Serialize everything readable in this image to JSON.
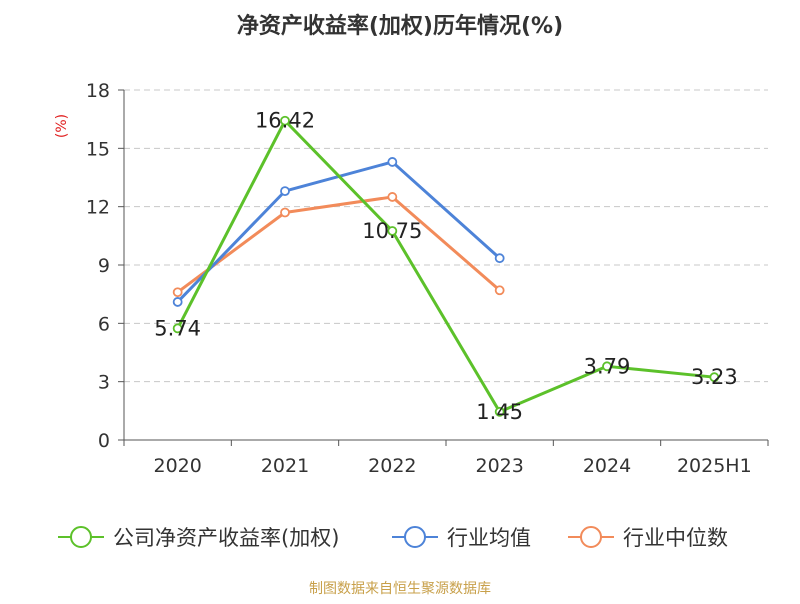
{
  "chart_data": {
    "type": "line",
    "title": "净资产收益率(加权)历年情况(%)",
    "ylabel": "(%)",
    "xlabel": "",
    "categories": [
      "2020",
      "2021",
      "2022",
      "2023",
      "2024",
      "2025H1"
    ],
    "ylim": [
      0,
      18
    ],
    "yticks": [
      0,
      3,
      6,
      9,
      12,
      15,
      18
    ],
    "grid": true,
    "legend_position": "bottom",
    "series": [
      {
        "name": "公司净资产收益率(加权)",
        "color": "#5cc12a",
        "values": [
          5.74,
          16.42,
          10.75,
          1.45,
          3.79,
          3.23
        ],
        "labels": [
          "5.74",
          "16.42",
          "10.75",
          "1.45",
          "3.79",
          "3.23"
        ]
      },
      {
        "name": "行业均值",
        "color": "#4d83d8",
        "values": [
          7.1,
          12.8,
          14.3,
          9.35,
          null,
          null
        ]
      },
      {
        "name": "行业中位数",
        "color": "#f28b5a",
        "values": [
          7.6,
          11.7,
          12.5,
          7.7,
          null,
          null
        ]
      }
    ],
    "source": "制图数据来自恒生聚源数据库"
  }
}
